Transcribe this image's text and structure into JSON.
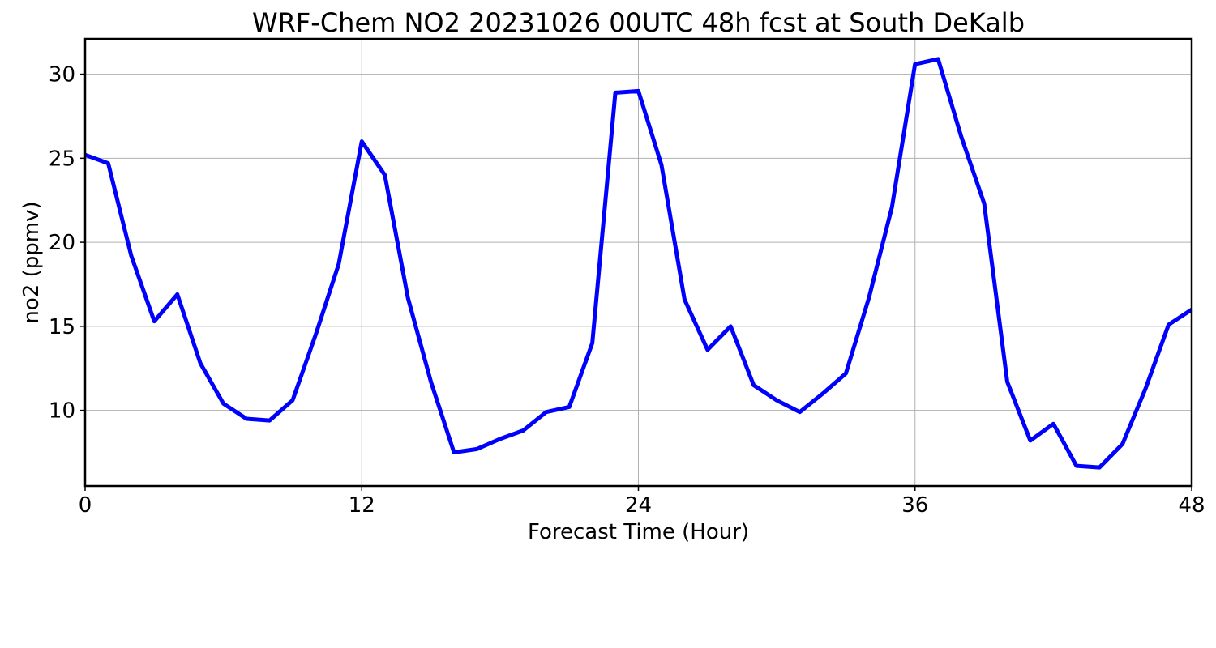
{
  "chart_data": {
    "type": "line",
    "title": "WRF-Chem NO2  20231026 00UTC 48h fcst at South DeKalb",
    "xlabel": "Forecast Time (Hour)",
    "ylabel": "no2  (ppmv)",
    "xlim": [
      0,
      48
    ],
    "ylim": [
      5.5,
      32.1
    ],
    "xticks": [
      0,
      12,
      24,
      36,
      48
    ],
    "xtick_labels": [
      "0",
      "12",
      "24",
      "36",
      "48"
    ],
    "yticks": [
      10,
      15,
      20,
      25,
      30
    ],
    "ytick_labels": [
      "10",
      "15",
      "20",
      "25",
      "30"
    ],
    "grid": true,
    "line_color": "#0000ff",
    "series": [
      {
        "x": [
          0,
          1,
          2,
          3,
          4,
          5,
          6,
          7,
          8,
          9,
          10,
          11,
          12,
          13,
          14,
          15,
          16,
          17,
          18,
          19,
          20,
          21,
          22,
          23,
          24,
          25,
          26,
          27,
          28,
          29,
          30,
          31,
          32,
          33,
          34,
          35,
          36,
          37,
          38,
          39,
          40,
          41,
          42,
          43,
          44,
          45,
          46,
          47,
          48
        ],
        "values": [
          25.2,
          24.7,
          19.2,
          15.3,
          16.9,
          12.8,
          10.4,
          9.5,
          9.4,
          10.6,
          14.5,
          18.7,
          26.0,
          24.0,
          16.7,
          11.7,
          7.5,
          7.7,
          8.3,
          8.8,
          9.9,
          10.2,
          14.0,
          28.9,
          29.0,
          24.6,
          16.6,
          13.6,
          15.0,
          11.5,
          10.6,
          9.9,
          11.0,
          12.2,
          16.7,
          22.1,
          30.6,
          30.9,
          26.3,
          22.3,
          11.7,
          8.2,
          9.2,
          6.7,
          6.6,
          8.0,
          11.3,
          15.1,
          16.0
        ]
      }
    ]
  }
}
